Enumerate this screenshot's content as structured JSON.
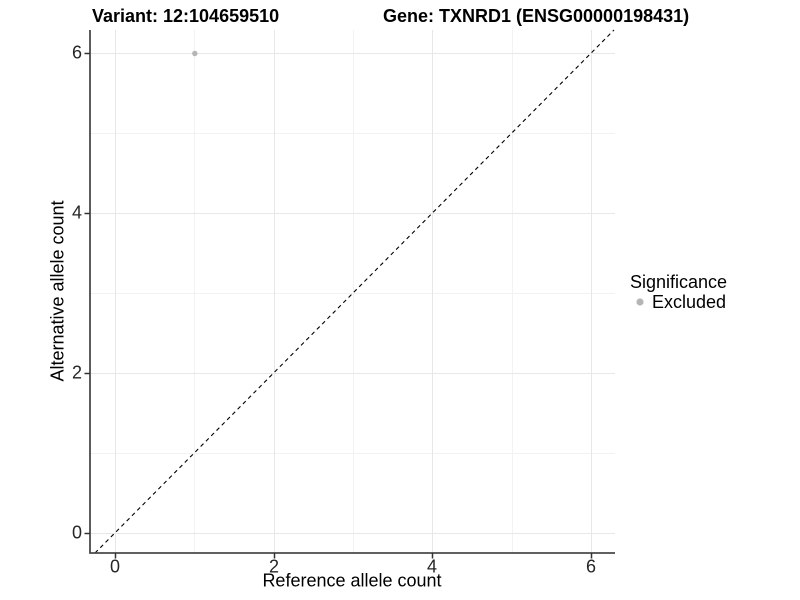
{
  "chart_data": {
    "type": "scatter",
    "title_left": "Variant: 12:104659510",
    "title_right": "Gene: TXNRD1 (ENSG00000198431)",
    "xlabel": "Reference allele count",
    "ylabel": "Alternative allele count",
    "x_ticks": [
      "0",
      "2",
      "4",
      "6"
    ],
    "y_ticks": [
      "0",
      "2",
      "4",
      "6"
    ],
    "x_minor_ticks": [
      1,
      3,
      5
    ],
    "y_minor_ticks": [
      1,
      3,
      5
    ],
    "xlim": [
      -0.3,
      6.33
    ],
    "ylim": [
      -0.25,
      6.29
    ],
    "grid": "major and minor light-gray gridlines on white panel",
    "points": [
      {
        "x": 1,
        "y": 6,
        "significance": "Excluded"
      }
    ],
    "reference_line": {
      "type": "identity y=x",
      "linestyle": "dashed",
      "color": "#000000"
    },
    "legend": {
      "title": "Significance",
      "position": "right",
      "entries": [
        {
          "label": "Excluded",
          "marker": "circle",
          "color": "#b5b5b5"
        }
      ]
    },
    "colors": {
      "point": "#b5b5b5",
      "grid_major": "#e7e7e7",
      "grid_minor": "#f2f2f2",
      "axis_line": "#4a4a4a",
      "tick_mark": "#333333",
      "text": "#000000"
    }
  }
}
